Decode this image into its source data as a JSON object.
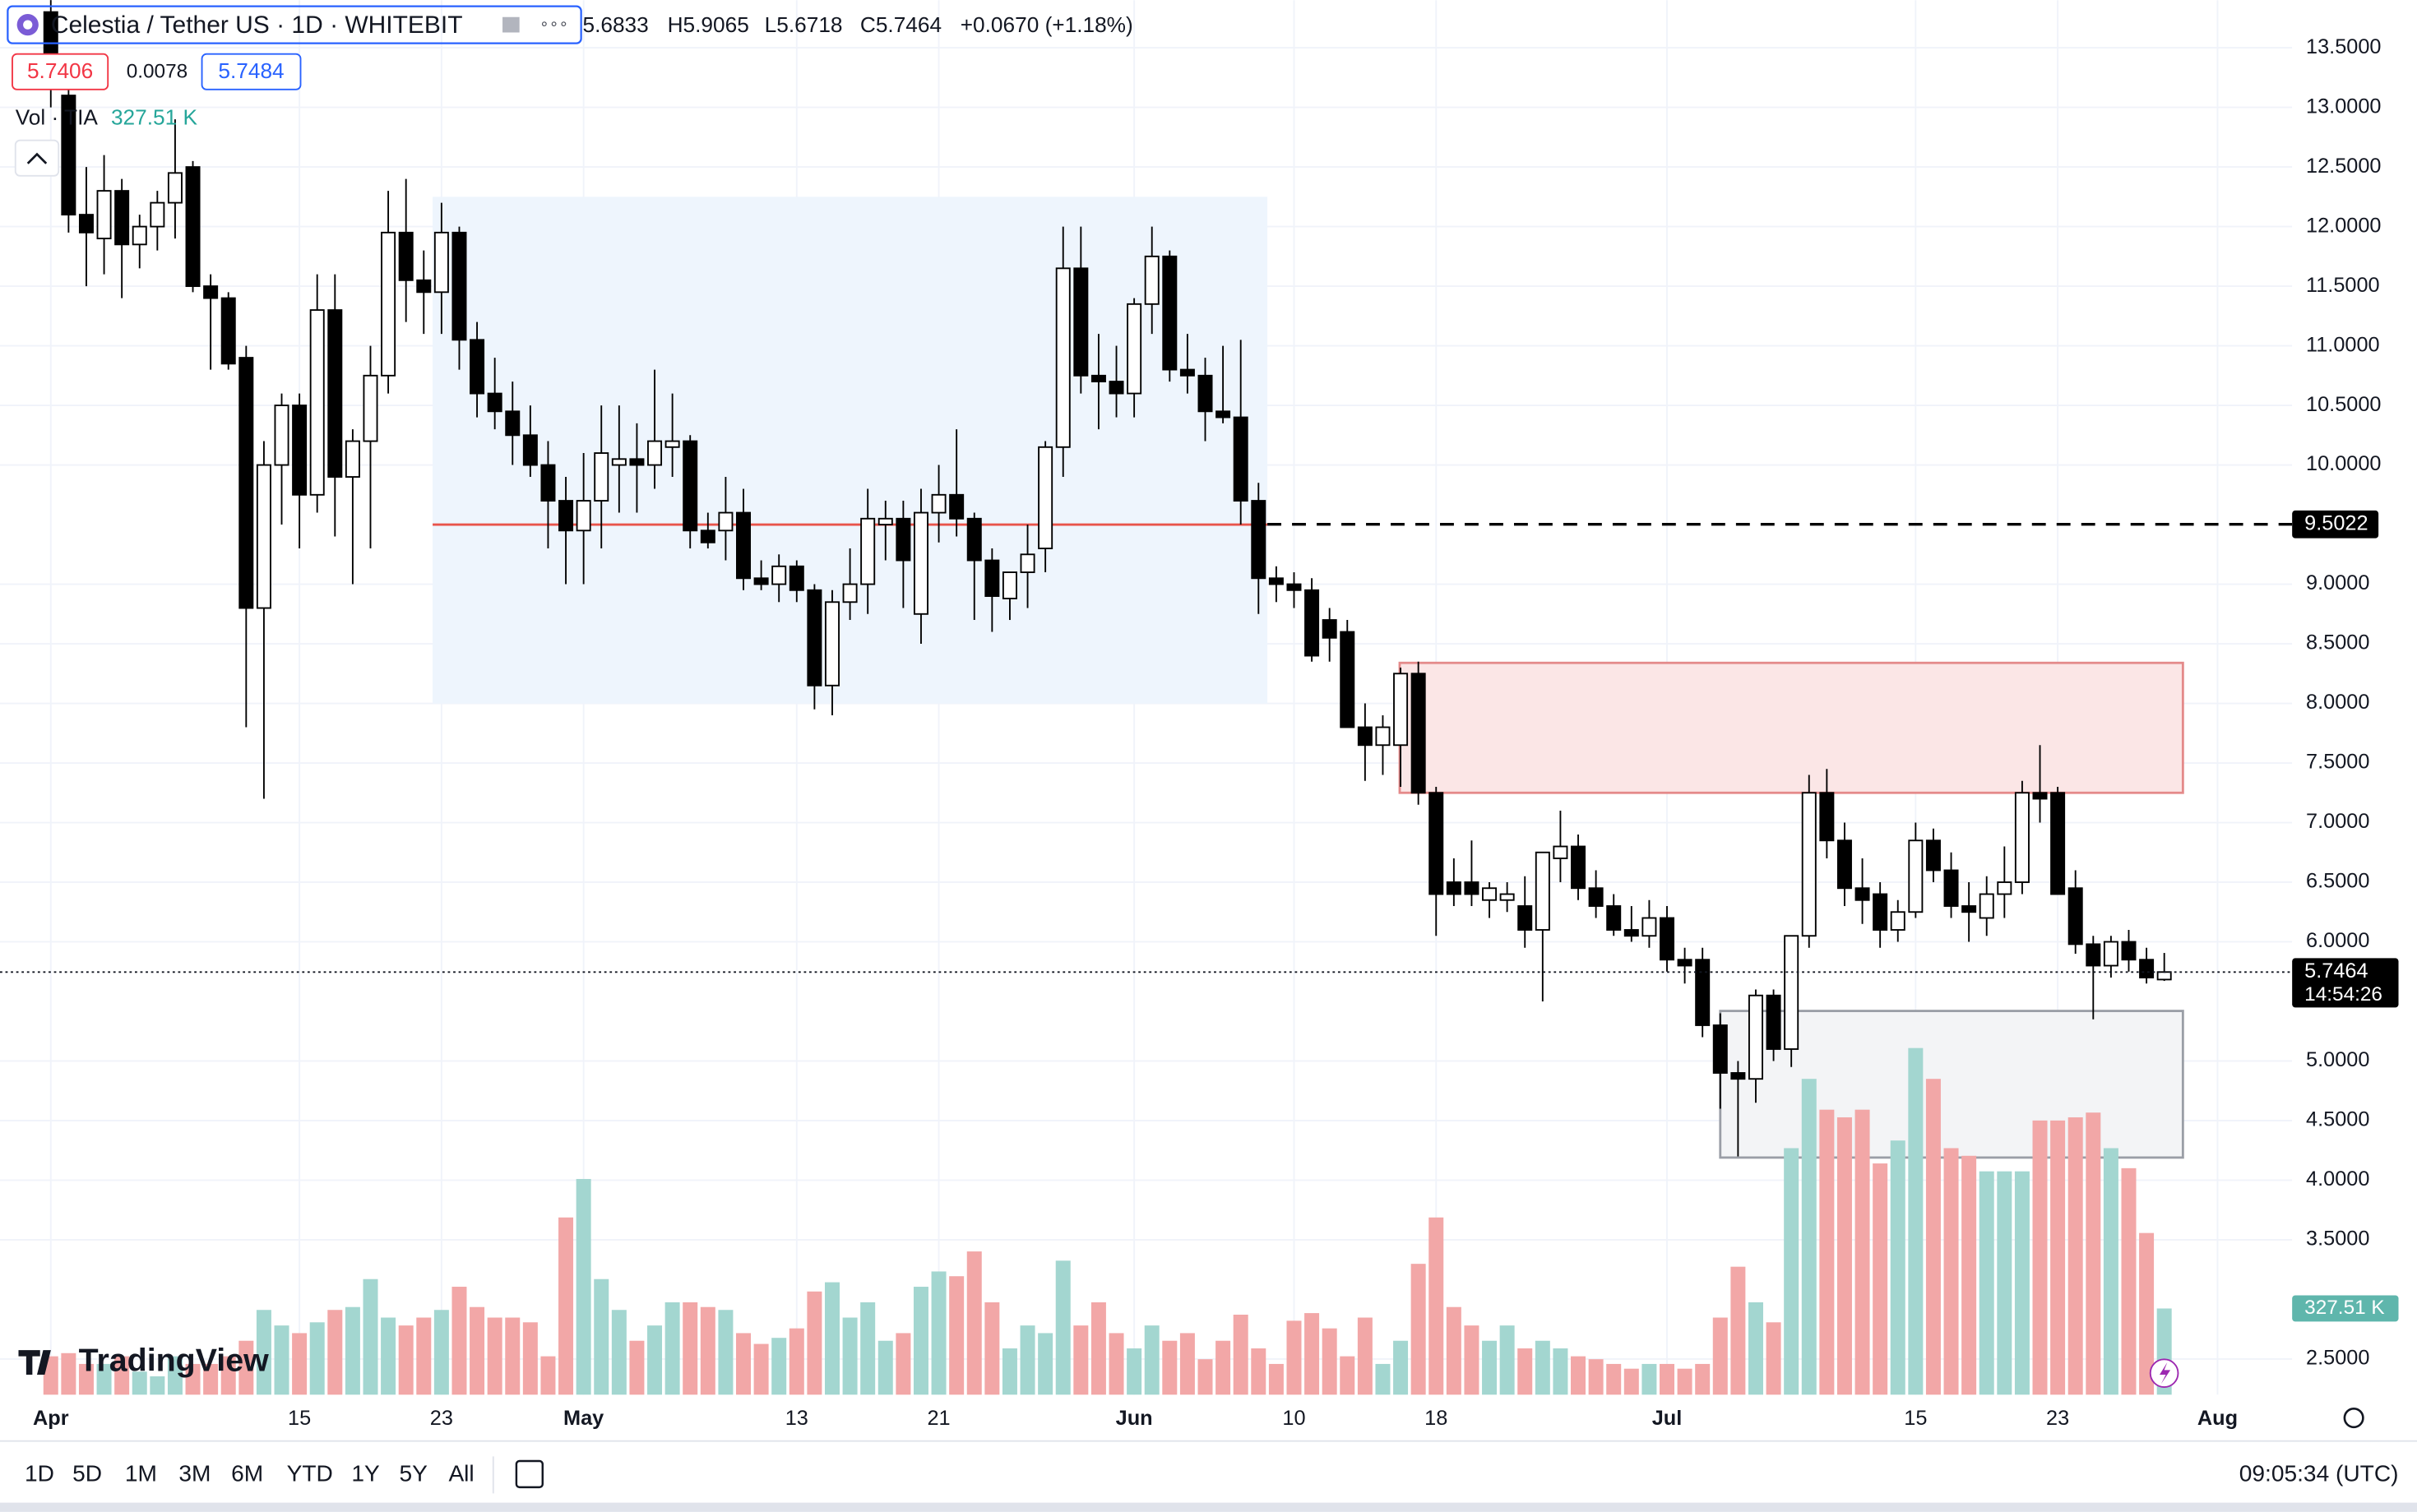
{
  "header": {
    "title": "Celestia / Tether US · 1D · WHITEBIT",
    "open": "5.6833",
    "high": "H5.9065",
    "low": "L5.6718",
    "close": "C5.7464",
    "change": "+0.0670 (+1.18%)",
    "bid": "5.7406",
    "spread": "0.0078",
    "ask": "5.7484",
    "volume_name": "Vol · TIA",
    "volume_value": "327.51 K"
  },
  "chart_data": {
    "type": "candlestick",
    "x": [
      "Apr 1",
      "Apr 2",
      "Apr 3",
      "Apr 4",
      "Apr 5",
      "Apr 6",
      "Apr 7",
      "Apr 8",
      "Apr 9",
      "Apr 10",
      "Apr 11",
      "Apr 12",
      "Apr 13",
      "Apr 14",
      "Apr 15",
      "Apr 16",
      "Apr 17",
      "Apr 18",
      "Apr 19",
      "Apr 20",
      "Apr 21",
      "Apr 22",
      "Apr 23",
      "Apr 24",
      "Apr 25",
      "Apr 26",
      "Apr 27",
      "Apr 28",
      "Apr 29",
      "Apr 30",
      "May 1",
      "May 2",
      "May 3",
      "May 4",
      "May 5",
      "May 6",
      "May 7",
      "May 8",
      "May 9",
      "May 10",
      "May 11",
      "May 12",
      "May 13",
      "May 14",
      "May 15",
      "May 16",
      "May 17",
      "May 18",
      "May 19",
      "May 20",
      "May 21",
      "May 22",
      "May 23",
      "May 24",
      "May 25",
      "May 26",
      "May 27",
      "May 28",
      "May 29",
      "May 30",
      "May 31",
      "Jun 1",
      "Jun 2",
      "Jun 3",
      "Jun 4",
      "Jun 5",
      "Jun 6",
      "Jun 7",
      "Jun 8",
      "Jun 9",
      "Jun 10",
      "Jun 11",
      "Jun 12",
      "Jun 13",
      "Jun 14",
      "Jun 15",
      "Jun 16",
      "Jun 17",
      "Jun 18",
      "Jun 19",
      "Jun 20",
      "Jun 21",
      "Jun 22",
      "Jun 23",
      "Jun 24",
      "Jun 25",
      "Jun 26",
      "Jun 27",
      "Jun 28",
      "Jun 29",
      "Jun 30",
      "Jul 1",
      "Jul 2",
      "Jul 3",
      "Jul 4",
      "Jul 5",
      "Jul 6",
      "Jul 7",
      "Jul 8",
      "Jul 9",
      "Jul 10",
      "Jul 11",
      "Jul 12",
      "Jul 13",
      "Jul 14",
      "Jul 15",
      "Jul 16",
      "Jul 17",
      "Jul 18",
      "Jul 19",
      "Jul 20",
      "Jul 21",
      "Jul 22",
      "Jul 23",
      "Jul 24",
      "Jul 25",
      "Jul 26",
      "Jul 27",
      "Jul 28",
      "Jul 29"
    ],
    "open": [
      13.8,
      13.1,
      12.1,
      11.9,
      12.3,
      11.85,
      12.0,
      12.2,
      12.5,
      11.5,
      11.4,
      10.9,
      8.8,
      10.0,
      10.5,
      9.75,
      11.3,
      9.9,
      10.2,
      10.75,
      11.95,
      11.55,
      11.45,
      11.95,
      11.05,
      10.6,
      10.45,
      10.25,
      10.0,
      9.7,
      9.45,
      9.7,
      10.0,
      10.05,
      10.0,
      10.15,
      10.2,
      9.45,
      9.45,
      9.6,
      9.05,
      9.0,
      9.15,
      8.95,
      8.15,
      8.85,
      9.0,
      9.5,
      9.55,
      8.75,
      9.6,
      9.75,
      9.55,
      9.2,
      8.88,
      9.1,
      9.3,
      10.15,
      11.65,
      10.75,
      10.7,
      10.6,
      11.35,
      11.75,
      10.8,
      10.75,
      10.45,
      10.4,
      9.7,
      9.05,
      9.0,
      8.95,
      8.7,
      8.6,
      7.8,
      7.65,
      7.65,
      8.25,
      7.25,
      6.5,
      6.5,
      6.35,
      6.35,
      6.3,
      6.1,
      6.7,
      6.8,
      6.45,
      6.3,
      6.1,
      6.05,
      6.2,
      5.85,
      5.85,
      5.3,
      4.9,
      4.85,
      5.55,
      5.1,
      6.05,
      7.25,
      6.85,
      6.45,
      6.4,
      6.1,
      6.25,
      6.85,
      6.6,
      6.3,
      6.2,
      6.4,
      6.5,
      7.25,
      7.25,
      6.45,
      5.98,
      5.8,
      6.0,
      5.85,
      5.6833
    ],
    "high": [
      14.2,
      13.4,
      12.5,
      12.6,
      12.4,
      12.1,
      12.3,
      12.9,
      12.55,
      11.6,
      11.45,
      11.0,
      10.2,
      10.6,
      10.6,
      11.6,
      11.6,
      10.3,
      11.0,
      12.3,
      12.4,
      11.8,
      12.2,
      12.0,
      11.2,
      10.9,
      10.7,
      10.5,
      10.2,
      9.9,
      10.1,
      10.5,
      10.5,
      10.35,
      10.8,
      10.6,
      10.25,
      9.6,
      9.9,
      9.8,
      9.2,
      9.25,
      9.2,
      9.0,
      8.95,
      9.3,
      9.8,
      9.7,
      9.7,
      9.8,
      10.0,
      10.3,
      9.6,
      9.3,
      9.1,
      9.5,
      10.2,
      12.0,
      12.0,
      11.1,
      11.0,
      11.4,
      12.0,
      11.8,
      11.1,
      10.9,
      11.0,
      11.05,
      9.85,
      9.15,
      9.1,
      9.05,
      8.8,
      8.7,
      8.0,
      7.9,
      8.3,
      8.35,
      7.3,
      6.7,
      6.85,
      6.5,
      6.5,
      6.55,
      6.75,
      7.1,
      6.9,
      6.6,
      6.4,
      6.3,
      6.35,
      6.3,
      5.95,
      5.95,
      5.4,
      5.0,
      5.6,
      5.6,
      6.05,
      7.4,
      7.45,
      7.0,
      6.7,
      6.5,
      6.35,
      7.0,
      6.95,
      6.75,
      6.5,
      6.55,
      6.8,
      7.35,
      7.65,
      7.3,
      6.6,
      6.05,
      6.05,
      6.1,
      5.95,
      5.9065
    ],
    "low": [
      13.0,
      11.95,
      11.5,
      11.6,
      11.4,
      11.65,
      11.8,
      11.9,
      11.45,
      10.8,
      10.8,
      7.8,
      7.2,
      9.5,
      9.3,
      9.6,
      9.4,
      9.0,
      9.3,
      10.6,
      11.2,
      11.1,
      11.1,
      10.8,
      10.4,
      10.3,
      10.0,
      9.9,
      9.3,
      9.0,
      9.0,
      9.3,
      9.6,
      9.6,
      9.8,
      9.9,
      9.3,
      9.3,
      9.2,
      8.95,
      8.95,
      8.85,
      8.85,
      7.95,
      7.9,
      8.7,
      8.75,
      9.2,
      8.8,
      8.5,
      9.35,
      9.4,
      8.7,
      8.6,
      8.7,
      8.8,
      9.1,
      9.9,
      10.6,
      10.3,
      10.4,
      10.4,
      11.1,
      10.7,
      10.6,
      10.2,
      10.35,
      9.5,
      8.75,
      8.85,
      8.8,
      8.35,
      8.35,
      7.8,
      7.35,
      7.4,
      7.3,
      7.15,
      6.05,
      6.3,
      6.3,
      6.2,
      6.25,
      5.95,
      5.5,
      6.5,
      6.35,
      6.2,
      6.05,
      6.0,
      5.95,
      5.75,
      5.65,
      5.2,
      4.6,
      4.2,
      4.65,
      5.0,
      4.95,
      5.95,
      6.7,
      6.3,
      6.15,
      5.95,
      6.0,
      6.2,
      6.5,
      6.2,
      6.0,
      6.05,
      6.2,
      6.4,
      7.0,
      6.4,
      5.9,
      5.35,
      5.7,
      5.75,
      5.65,
      5.6718
    ],
    "close": [
      13.2,
      12.1,
      11.95,
      12.3,
      11.85,
      12.0,
      12.2,
      12.45,
      11.5,
      11.4,
      10.85,
      8.8,
      10.0,
      10.5,
      9.75,
      11.3,
      9.9,
      10.2,
      10.75,
      11.95,
      11.55,
      11.45,
      11.95,
      11.05,
      10.6,
      10.45,
      10.25,
      10.0,
      9.7,
      9.45,
      9.7,
      10.1,
      10.05,
      10.0,
      10.2,
      10.2,
      9.45,
      9.35,
      9.6,
      9.05,
      9.0,
      9.15,
      8.95,
      8.15,
      8.85,
      9.0,
      9.55,
      9.55,
      9.2,
      9.6,
      9.75,
      9.55,
      9.2,
      8.9,
      9.1,
      9.25,
      10.15,
      11.65,
      10.75,
      10.7,
      10.6,
      11.35,
      11.75,
      10.8,
      10.75,
      10.45,
      10.4,
      9.7,
      9.05,
      9.0,
      8.95,
      8.4,
      8.55,
      7.8,
      7.65,
      7.8,
      8.25,
      7.25,
      6.4,
      6.4,
      6.4,
      6.45,
      6.4,
      6.1,
      6.75,
      6.8,
      6.45,
      6.3,
      6.1,
      6.05,
      6.2,
      5.85,
      5.8,
      5.3,
      4.9,
      4.85,
      5.55,
      5.1,
      6.05,
      7.25,
      6.85,
      6.45,
      6.35,
      6.1,
      6.25,
      6.85,
      6.6,
      6.3,
      6.25,
      6.4,
      6.5,
      7.25,
      7.2,
      6.4,
      5.98,
      5.8,
      6.0,
      5.85,
      5.7,
      5.7464
    ],
    "up_color": "#ffffff",
    "down_color": "#000000",
    "volume": {
      "values": [
        146,
        158,
        117,
        117,
        146,
        88,
        70,
        146,
        117,
        117,
        146,
        205,
        322,
        263,
        234,
        275,
        322,
        333,
        439,
        293,
        263,
        293,
        322,
        410,
        333,
        293,
        293,
        275,
        146,
        673,
        819,
        439,
        322,
        205,
        263,
        351,
        351,
        333,
        322,
        234,
        193,
        216,
        252,
        392,
        427,
        293,
        351,
        205,
        234,
        410,
        468,
        450,
        544,
        351,
        176,
        263,
        234,
        509,
        263,
        351,
        234,
        176,
        263,
        205,
        234,
        135,
        205,
        304,
        176,
        117,
        281,
        310,
        252,
        146,
        293,
        117,
        205,
        497,
        673,
        333,
        263,
        205,
        263,
        176,
        205,
        176,
        146,
        135,
        117,
        99,
        117,
        117,
        99,
        117,
        293,
        486,
        351,
        275,
        936,
        1199,
        1082,
        1053,
        1082,
        878,
        965,
        1316,
        1199,
        936,
        907,
        848,
        848,
        848,
        1041,
        1041,
        1053,
        1071,
        936,
        860,
        614,
        327.51
      ],
      "label": "327.51 K",
      "up_color": "#a3d6d0",
      "down_color": "#f2a7a7",
      "badge_color": "#5fb6ac"
    },
    "xlim": [
      -2.86,
      126.2
    ],
    "xticks": [
      {
        "value": 0,
        "label": "Apr"
      },
      {
        "value": 14,
        "label": "15"
      },
      {
        "value": 22,
        "label": "23"
      },
      {
        "value": 30,
        "label": "May"
      },
      {
        "value": 42,
        "label": "13"
      },
      {
        "value": 50,
        "label": "21"
      },
      {
        "value": 61,
        "label": "Jun"
      },
      {
        "value": 70,
        "label": "10"
      },
      {
        "value": 78,
        "label": "18"
      },
      {
        "value": 91,
        "label": "Jul"
      },
      {
        "value": 105,
        "label": "15"
      },
      {
        "value": 113,
        "label": "23"
      },
      {
        "value": 122,
        "label": "Aug"
      }
    ],
    "ylim": [
      2.2,
      13.9
    ],
    "yticks": [
      {
        "value": 13.5,
        "label": "13.5000"
      },
      {
        "value": 13.0,
        "label": "13.0000"
      },
      {
        "value": 12.5,
        "label": "12.5000"
      },
      {
        "value": 12.0,
        "label": "12.0000"
      },
      {
        "value": 11.5,
        "label": "11.5000"
      },
      {
        "value": 11.0,
        "label": "11.0000"
      },
      {
        "value": 10.5,
        "label": "10.5000"
      },
      {
        "value": 10.0,
        "label": "10.0000"
      },
      {
        "value": 9.0,
        "label": "9.0000"
      },
      {
        "value": 8.5,
        "label": "8.5000"
      },
      {
        "value": 8.0,
        "label": "8.0000"
      },
      {
        "value": 7.5,
        "label": "7.5000"
      },
      {
        "value": 7.0,
        "label": "7.0000"
      },
      {
        "value": 6.5,
        "label": "6.5000"
      },
      {
        "value": 6.0,
        "label": "6.0000"
      },
      {
        "value": 5.0,
        "label": "5.0000"
      },
      {
        "value": 4.5,
        "label": "4.5000"
      },
      {
        "value": 4.0,
        "label": "4.0000"
      },
      {
        "value": 3.5,
        "label": "3.5000"
      },
      {
        "value": 2.5,
        "label": "2.5000"
      }
    ],
    "grid": true,
    "zones": [
      {
        "x0": 21.5,
        "x1": 68.5,
        "y0": 8.0,
        "y1": 12.25,
        "fill": "#eef5fd",
        "stroke": "none"
      },
      {
        "x0": 75.95,
        "x1": 120.05,
        "y0": 7.25,
        "y1": 8.34,
        "fill": "#fbe6e6",
        "stroke": "#e48a8a"
      },
      {
        "x0": 94.0,
        "x1": 120.05,
        "y0": 4.19,
        "y1": 5.42,
        "fill": "#f3f4f6",
        "stroke": "#9a9ea6"
      }
    ],
    "poc": {
      "value": 9.5,
      "from": 21.5,
      "to": 68.5,
      "color": "#e8544b"
    },
    "levels": [
      {
        "value": 9.5022,
        "label": "9.5022",
        "from": 68.5,
        "color": "#000000"
      }
    ],
    "last_price": {
      "value": 5.7464,
      "label": "5.7464",
      "countdown": "14:54:26"
    }
  },
  "branding": "TradingView",
  "toolbar": {
    "ranges": [
      "1D",
      "5D",
      "1M",
      "3M",
      "6M",
      "YTD",
      "1Y",
      "5Y",
      "All"
    ],
    "clock": "09:05:34 (UTC)"
  }
}
